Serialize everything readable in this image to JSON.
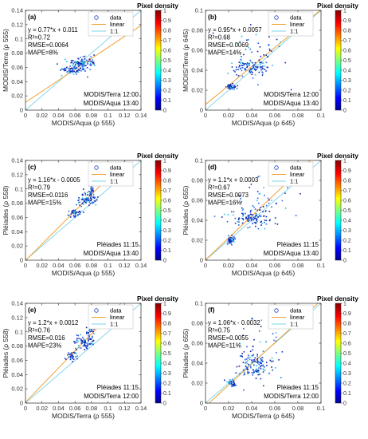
{
  "colorbar": {
    "title": "Pixel density",
    "ticks": [
      "0",
      "0.1",
      "0.2",
      "0.3",
      "0.4",
      "0.5",
      "0.6",
      "0.7",
      "0.8",
      "0.9",
      "1"
    ]
  },
  "legend": {
    "data": "data",
    "linear": "linear",
    "one_to_one": "1:1"
  },
  "colors": {
    "linear": "#f0a030",
    "one_to_one": "#7fd3e8",
    "data_marker": "#1f3fbf"
  },
  "chart_data": [
    {
      "type": "scatter",
      "label": "(a)",
      "xlabel": "MODIS/Aqua (ρ 555)",
      "ylabel": "MODIS/Terra (ρ 555)",
      "xlim": [
        0,
        0.14
      ],
      "ylim": [
        0,
        0.14
      ],
      "xticks": [
        "0",
        "0.02",
        "0.04",
        "0.06",
        "0.08",
        "0.1",
        "0.12",
        "0.14"
      ],
      "yticks": [
        "0",
        "0.02",
        "0.04",
        "0.06",
        "0.08",
        "0.1",
        "0.12",
        "0.14"
      ],
      "fit": {
        "slope": 0.77,
        "intercept": 0.011
      },
      "stats": [
        "y = 0.77*x + 0.011",
        "R²=0.72",
        "RMSE=0.0064",
        "MAPE=8%"
      ],
      "times": [
        "MODIS/Terra 12:00",
        "MODIS/Aqua 13:40"
      ],
      "clusters": [
        [
          0.068,
          0.066,
          0.01,
          0.004,
          90
        ],
        [
          0.058,
          0.056,
          0.007,
          0.004,
          60
        ]
      ]
    },
    {
      "type": "scatter",
      "label": "(b)",
      "xlabel": "MODIS/Aqua (ρ 645)",
      "ylabel": "MODIS/Terra (ρ 645)",
      "xlim": [
        0,
        0.1
      ],
      "ylim": [
        0,
        0.1
      ],
      "xticks": [
        "0",
        "0.02",
        "0.04",
        "0.06",
        "0.08",
        "0.1"
      ],
      "yticks": [
        "0",
        "0.02",
        "0.04",
        "0.06",
        "0.08",
        "0.1"
      ],
      "fit": {
        "slope": 0.95,
        "intercept": 0.0057
      },
      "stats": [
        "y = 0.95*x + 0.0057",
        "R²=0.68",
        "RMSE=0.0069",
        "MAPE=14%"
      ],
      "times": [
        "MODIS/Terra 12:00",
        "MODIS/Aqua 13:40"
      ],
      "clusters": [
        [
          0.038,
          0.043,
          0.008,
          0.004,
          90
        ],
        [
          0.022,
          0.024,
          0.002,
          0.002,
          40
        ],
        [
          0.045,
          0.05,
          0.012,
          0.014,
          50
        ]
      ]
    },
    {
      "type": "scatter",
      "label": "(c)",
      "xlabel": "MODIS/Aqua (ρ 555)",
      "ylabel": "Pléiades (ρ 558)",
      "xlim": [
        0,
        0.14
      ],
      "ylim": [
        0,
        0.14
      ],
      "xticks": [
        "0",
        "0.02",
        "0.04",
        "0.06",
        "0.08",
        "0.1",
        "0.12",
        "0.14"
      ],
      "yticks": [
        "0",
        "0.02",
        "0.04",
        "0.06",
        "0.08",
        "0.1",
        "0.12",
        "0.14"
      ],
      "fit": {
        "slope": 1.16,
        "intercept": -0.0005
      },
      "stats": [
        "y = 1.16*x - 0.0005",
        "R²=0.79",
        "RMSE=0.0116",
        "MAPE=15%"
      ],
      "times": [
        "Pléiades 11:15",
        "MODIS/Aqua 13:40"
      ],
      "clusters": [
        [
          0.075,
          0.085,
          0.006,
          0.005,
          70
        ],
        [
          0.06,
          0.067,
          0.004,
          0.003,
          40
        ],
        [
          0.08,
          0.1,
          0.002,
          0.005,
          25
        ]
      ]
    },
    {
      "type": "scatter",
      "label": "(d)",
      "xlabel": "MODIS/Aqua (ρ 645)",
      "ylabel": "Pléiades (ρ 655)",
      "xlim": [
        0,
        0.1
      ],
      "ylim": [
        0,
        0.1
      ],
      "xticks": [
        "0",
        "0.02",
        "0.04",
        "0.06",
        "0.08",
        "0.1"
      ],
      "yticks": [
        "0",
        "0.02",
        "0.04",
        "0.06",
        "0.08",
        "0.1"
      ],
      "fit": {
        "slope": 1.1,
        "intercept": 0.0003
      },
      "stats": [
        "y = 1.1*x + 0.0003",
        "R²=0.67",
        "RMSE=0.0073",
        "MAPE=16%"
      ],
      "times": [
        "Pléiades 11:15",
        "MODIS/Aqua 13:40"
      ],
      "clusters": [
        [
          0.04,
          0.043,
          0.008,
          0.005,
          100
        ],
        [
          0.022,
          0.02,
          0.002,
          0.002,
          40
        ],
        [
          0.05,
          0.055,
          0.01,
          0.012,
          50
        ]
      ]
    },
    {
      "type": "scatter",
      "label": "(e)",
      "xlabel": "MODIS/Terra (ρ 555)",
      "ylabel": "Pléiades (ρ 558)",
      "xlim": [
        0,
        0.14
      ],
      "ylim": [
        0,
        0.14
      ],
      "xticks": [
        "0",
        "0.02",
        "0.04",
        "0.06",
        "0.08",
        "0.1",
        "0.12",
        "0.14"
      ],
      "yticks": [
        "0",
        "0.02",
        "0.04",
        "0.06",
        "0.08",
        "0.1",
        "0.12",
        "0.14"
      ],
      "fit": {
        "slope": 1.2,
        "intercept": 0.0012
      },
      "stats": [
        "y = 1.2*x + 0.0012",
        "R²=0.76",
        "RMSE=0.016",
        "MAPE=23%"
      ],
      "times": [
        "Pléiades 11:15",
        "MODIS/Terra 12:00"
      ],
      "clusters": [
        [
          0.072,
          0.085,
          0.005,
          0.005,
          70
        ],
        [
          0.057,
          0.066,
          0.003,
          0.003,
          35
        ],
        [
          0.078,
          0.1,
          0.003,
          0.004,
          20
        ]
      ]
    },
    {
      "type": "scatter",
      "label": "(f)",
      "xlabel": "MODIS/Terra (ρ 645)",
      "ylabel": "Pléiades (ρ 655)",
      "xlim": [
        0,
        0.1
      ],
      "ylim": [
        0,
        0.1
      ],
      "xticks": [
        "0",
        "0.02",
        "0.04",
        "0.06",
        "0.08",
        "0.1"
      ],
      "yticks": [
        "0",
        "0.02",
        "0.04",
        "0.06",
        "0.08",
        "0.1"
      ],
      "fit": {
        "slope": 1.06,
        "intercept": -0.0032
      },
      "stats": [
        "y = 1.06*x - 0.0032",
        "R²=0.75",
        "RMSE=0.0055",
        "MAPE=11%"
      ],
      "times": [
        "Pléiades 11:15",
        "MODIS/Terra 12:00"
      ],
      "clusters": [
        [
          0.042,
          0.038,
          0.008,
          0.006,
          100
        ],
        [
          0.023,
          0.02,
          0.002,
          0.002,
          35
        ],
        [
          0.05,
          0.05,
          0.01,
          0.015,
          45
        ]
      ]
    }
  ]
}
